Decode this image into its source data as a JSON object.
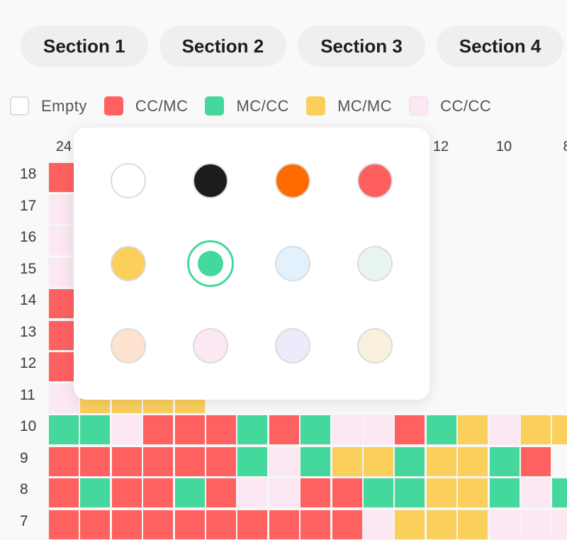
{
  "tabs": [
    {
      "label": "Section 1"
    },
    {
      "label": "Section 2"
    },
    {
      "label": "Section 3"
    },
    {
      "label": "Section 4"
    }
  ],
  "legend": [
    {
      "label": "Empty",
      "color": "#ffffff"
    },
    {
      "label": "CC/MC",
      "color": "#ff6161"
    },
    {
      "label": "MC/CC",
      "color": "#45d89c"
    },
    {
      "label": "MC/MC",
      "color": "#fbcf5c"
    },
    {
      "label": "CC/CC",
      "color": "#fbe8f3"
    }
  ],
  "columns": [
    "24",
    "12",
    "10",
    "8"
  ],
  "rows": [
    "18",
    "17",
    "16",
    "15",
    "14",
    "13",
    "12",
    "11",
    "10",
    "9",
    "8",
    "7"
  ],
  "grid_codes": [
    "1.....................4",
    "4...................1344",
    "4...................3233",
    "4...................3232",
    "1...................3311",
    "1...................3311",
    "1...................1442",
    "43333.............311333",
    "224111212441234333",
    "1111112423323321",
    "12112144112233242",
    "111111111143334444"
  ],
  "palette": {
    "title": "color-picker",
    "selected": "green",
    "colors": [
      {
        "name": "white",
        "hex": "#ffffff"
      },
      {
        "name": "black",
        "hex": "#1c1c1e"
      },
      {
        "name": "orange",
        "hex": "#ff6b00"
      },
      {
        "name": "red",
        "hex": "#ff5f5f"
      },
      {
        "name": "yellow",
        "hex": "#fbcf5c"
      },
      {
        "name": "green",
        "hex": "#45d89c"
      },
      {
        "name": "light-blue",
        "hex": "#e3f1fd"
      },
      {
        "name": "light-mint",
        "hex": "#e7f5ee"
      },
      {
        "name": "peach",
        "hex": "#fde2cf"
      },
      {
        "name": "light-pink",
        "hex": "#fbe8f3"
      },
      {
        "name": "lavender",
        "hex": "#ecebfb"
      },
      {
        "name": "cream",
        "hex": "#f8f0dc"
      }
    ]
  }
}
